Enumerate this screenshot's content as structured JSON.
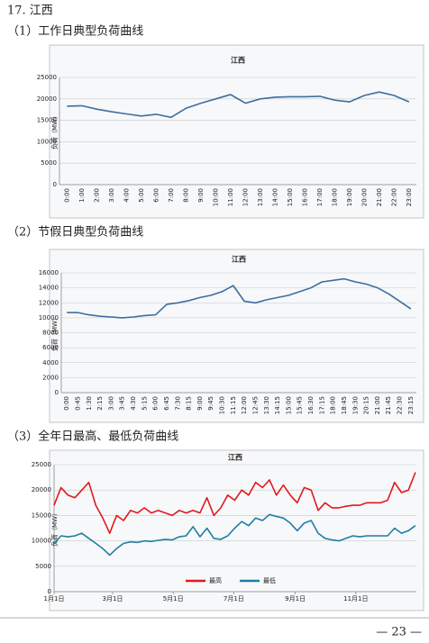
{
  "heading": "17. 江西",
  "sections": [
    "（1）工作日典型负荷曲线",
    "（2）节假日典型负荷曲线",
    "（3）全年日最高、最低负荷曲线"
  ],
  "page_number": "— 23 —",
  "chart_data": [
    {
      "type": "line",
      "title": "江西",
      "y_label": "负荷（MW）",
      "color": "#3d6f9e",
      "grid": true,
      "categories": [
        "0:00",
        "1:00",
        "2:00",
        "3:00",
        "4:00",
        "5:00",
        "6:00",
        "7:00",
        "8:00",
        "9:00",
        "10:00",
        "11:00",
        "12:00",
        "13:00",
        "14:00",
        "15:00",
        "16:00",
        "17:00",
        "18:00",
        "19:00",
        "20:00",
        "21:00",
        "22:00",
        "23:00"
      ],
      "values": [
        18300,
        18400,
        17600,
        17000,
        16500,
        16000,
        16400,
        15700,
        17800,
        19000,
        20000,
        21000,
        19000,
        20000,
        20400,
        20500,
        20500,
        20600,
        19700,
        19300,
        20800,
        21600,
        20800,
        19300
      ],
      "ylim": [
        0,
        25000
      ],
      "yticks": [
        0,
        5000,
        10000,
        15000,
        20000,
        25000
      ]
    },
    {
      "type": "line",
      "title": "江西",
      "y_label": "负荷（MW）",
      "color": "#3d6f9e",
      "grid": true,
      "categories": [
        "0:00",
        "0:45",
        "1:30",
        "2:15",
        "3:00",
        "3:45",
        "4:30",
        "5:15",
        "6:00",
        "6:45",
        "7:30",
        "8:15",
        "9:00",
        "9:45",
        "10:30",
        "11:15",
        "12:00",
        "12:45",
        "13:30",
        "14:15",
        "15:00",
        "15:45",
        "16:30",
        "17:15",
        "18:00",
        "18:45",
        "19:30",
        "20:15",
        "21:00",
        "21:45",
        "22:30",
        "23:15"
      ],
      "values": [
        10700,
        10700,
        10400,
        10200,
        10100,
        10000,
        10100,
        10300,
        10400,
        11800,
        12000,
        12300,
        12700,
        13000,
        13500,
        14300,
        12200,
        12000,
        12400,
        12700,
        13000,
        13500,
        14000,
        14800,
        15000,
        15200,
        14800,
        14500,
        14000,
        13200,
        12200,
        11200
      ],
      "ylim": [
        0,
        16000
      ],
      "yticks": [
        0,
        2000,
        4000,
        6000,
        8000,
        10000,
        12000,
        14000,
        16000
      ]
    },
    {
      "type": "line",
      "title": "江西",
      "y_label": "负荷（MW）",
      "grid": true,
      "legend": "bottom",
      "x": [
        1,
        8,
        15,
        22,
        29,
        36,
        43,
        50,
        57,
        64,
        71,
        78,
        85,
        92,
        99,
        106,
        113,
        120,
        127,
        134,
        141,
        148,
        155,
        162,
        169,
        176,
        183,
        190,
        197,
        204,
        211,
        218,
        225,
        232,
        239,
        246,
        253,
        260,
        267,
        274,
        281,
        288,
        295,
        302,
        309,
        316,
        323,
        330,
        337,
        344,
        351,
        358,
        365
      ],
      "xlim": [
        1,
        366
      ],
      "xticks": [
        {
          "value": 1,
          "label": "1月1日"
        },
        {
          "value": 60,
          "label": "3月1日"
        },
        {
          "value": 121,
          "label": "5月1日"
        },
        {
          "value": 182,
          "label": "7月1日"
        },
        {
          "value": 244,
          "label": "9月1日"
        },
        {
          "value": 305,
          "label": "11月1日"
        }
      ],
      "series": [
        {
          "name": "最高",
          "color": "#e0191e",
          "values": [
            17000,
            20500,
            19000,
            18500,
            20000,
            21500,
            17000,
            14500,
            11500,
            15000,
            14000,
            16000,
            15500,
            16500,
            15500,
            16000,
            15500,
            15000,
            16000,
            15500,
            16000,
            15500,
            18500,
            15000,
            16500,
            19000,
            18000,
            20000,
            19000,
            21500,
            20500,
            22000,
            19000,
            21000,
            19000,
            17500,
            20500,
            20000,
            16000,
            17500,
            16500,
            16500,
            16800,
            17000,
            17000,
            17500,
            17500,
            17500,
            18000,
            21500,
            19500,
            20000,
            23500
          ]
        },
        {
          "name": "最低",
          "color": "#1f7ea3",
          "values": [
            9500,
            11000,
            10800,
            11000,
            11500,
            10500,
            9500,
            8500,
            7200,
            8500,
            9500,
            9800,
            9700,
            10000,
            9900,
            10100,
            10300,
            10200,
            10800,
            11000,
            12800,
            10800,
            12500,
            10500,
            10300,
            11000,
            12500,
            13800,
            13000,
            14500,
            14000,
            15200,
            14800,
            14500,
            13500,
            12000,
            13500,
            14000,
            11500,
            10500,
            10200,
            10000,
            10500,
            11000,
            10800,
            11000,
            11000,
            11000,
            11000,
            12500,
            11500,
            12000,
            13000
          ]
        }
      ],
      "ylim": [
        0,
        25000
      ],
      "yticks": [
        0,
        5000,
        10000,
        15000,
        20000,
        25000
      ]
    }
  ]
}
